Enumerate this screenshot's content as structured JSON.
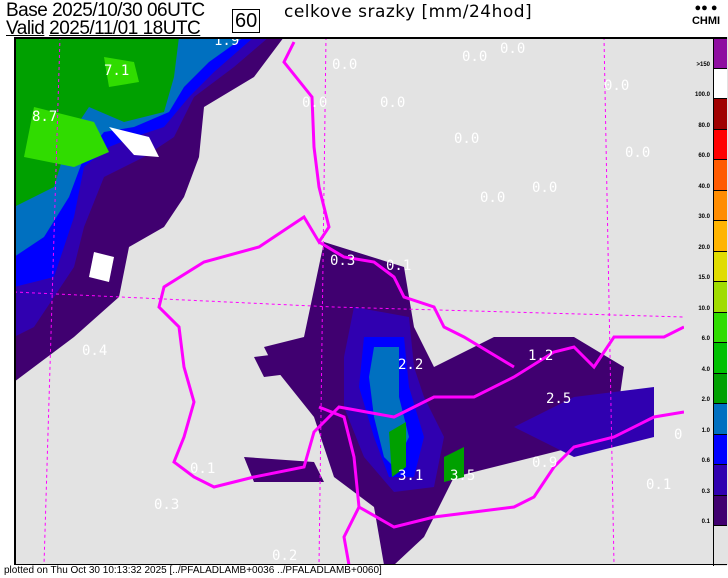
{
  "header": {
    "base_label": "Base",
    "base_value": "2025/10/30 06UTC",
    "valid_label": "Valid",
    "valid_value": "2025/11/01 18UTC",
    "forecast_hour": "60",
    "title": "celkove srazky [mm/24hod]"
  },
  "logo": {
    "text": "CHMI"
  },
  "legend": {
    "bands": [
      {
        "color": "#8e0ea0",
        "label": ">150"
      },
      {
        "color": "#ffffff",
        "label": "100.0"
      },
      {
        "color": "#a00000",
        "label": "80.0"
      },
      {
        "color": "#ff0000",
        "label": "60.0"
      },
      {
        "color": "#ff5a00",
        "label": "40.0"
      },
      {
        "color": "#ff8c00",
        "label": "30.0"
      },
      {
        "color": "#ffb400",
        "label": "20.0"
      },
      {
        "color": "#e0dc00",
        "label": "15.0"
      },
      {
        "color": "#a0dc00",
        "label": "10.0"
      },
      {
        "color": "#30dc00",
        "label": "6.0"
      },
      {
        "color": "#00c000",
        "label": "4.0"
      },
      {
        "color": "#00a000",
        "label": "2.0"
      },
      {
        "color": "#0070c0",
        "label": "1.0"
      },
      {
        "color": "#0000ff",
        "label": "0.6"
      },
      {
        "color": "#3000b0",
        "label": "0.3"
      },
      {
        "color": "#400070",
        "label": "0.1"
      },
      {
        "color": "#e3e3e3",
        "label": ""
      }
    ]
  },
  "map": {
    "border_color": "#ff00ff",
    "background_color": "#e3e3e3",
    "values": [
      {
        "text": "1.9"
      },
      {
        "text": "7.1"
      },
      {
        "text": "8.7"
      },
      {
        "text": "0.0"
      },
      {
        "text": "0.0"
      },
      {
        "text": "0.0"
      },
      {
        "text": "0.0"
      },
      {
        "text": "0.0"
      },
      {
        "text": "0.0"
      },
      {
        "text": "0.0"
      },
      {
        "text": "0.0"
      },
      {
        "text": "0.0"
      },
      {
        "text": "0.0"
      },
      {
        "text": "0.3"
      },
      {
        "text": "0.1"
      },
      {
        "text": "0.4"
      },
      {
        "text": "0.1"
      },
      {
        "text": "0.3"
      },
      {
        "text": "0.2"
      },
      {
        "text": "2.2"
      },
      {
        "text": "3.1"
      },
      {
        "text": "3.5"
      },
      {
        "text": "1.2"
      },
      {
        "text": "2.5"
      },
      {
        "text": "0.9"
      },
      {
        "text": "0.1"
      },
      {
        "text": "0"
      }
    ]
  },
  "footer": {
    "text": "plotted on Thu Oct 30 10:13:32 2025 [../PFALADLAMB+0036 ../PFALADLAMB+0060]"
  }
}
